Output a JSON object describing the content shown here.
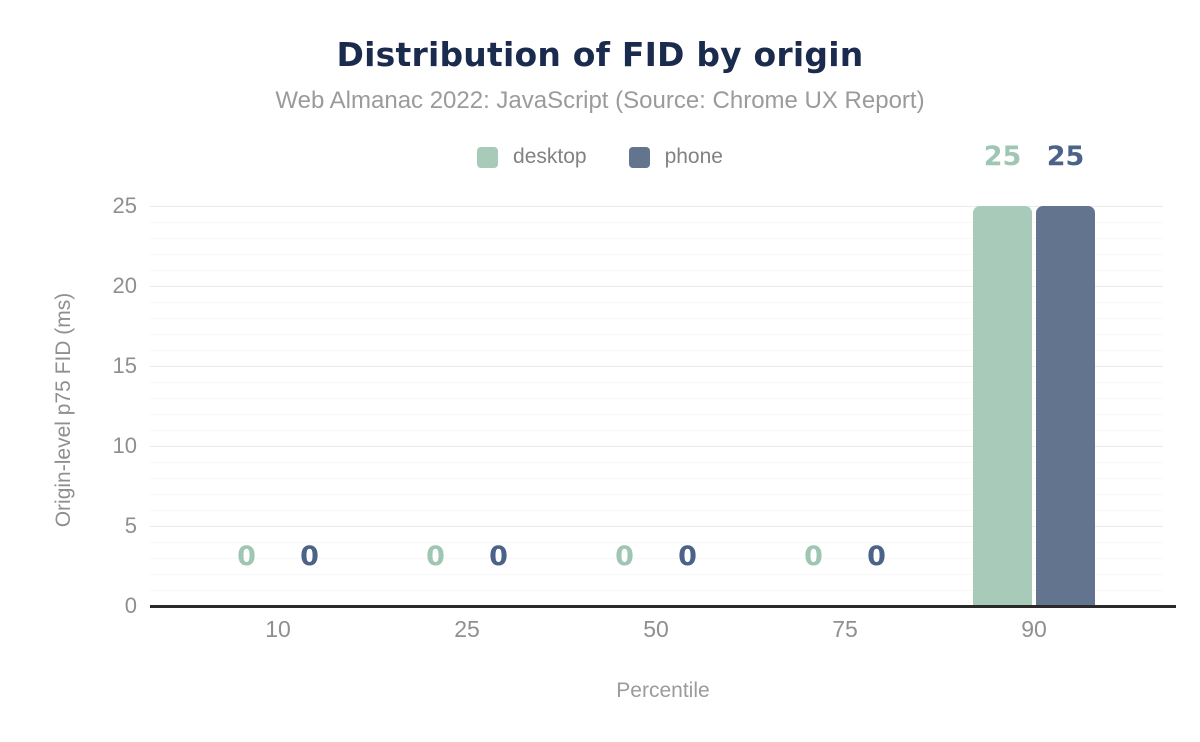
{
  "chart_data": {
    "type": "bar",
    "title": "Distribution of FID by origin",
    "subtitle": "Web Almanac 2022: JavaScript (Source: Chrome UX Report)",
    "xlabel": "Percentile",
    "ylabel": "Origin-level p75 FID (ms)",
    "categories": [
      "10",
      "25",
      "50",
      "75",
      "90"
    ],
    "series": [
      {
        "name": "desktop",
        "values": [
          0,
          0,
          0,
          0,
          25
        ],
        "color": "#a8cab8",
        "label_color": "#9fc6b2"
      },
      {
        "name": "phone",
        "values": [
          0,
          0,
          0,
          0,
          25
        ],
        "color": "#62748e",
        "label_color": "#4b6389"
      }
    ],
    "ylim": [
      0,
      25
    ],
    "yticks": [
      0,
      5,
      10,
      15,
      20,
      25
    ],
    "minor_grid_step": 1,
    "major_grid_step": 5,
    "grid": "horizontal",
    "legend_position": "top"
  },
  "colors": {
    "background": "#ffffff",
    "title": "#1b2b4d",
    "subtitle": "#9b9b9b",
    "axis_text": "#8f8f8f",
    "legend_text": "#828282",
    "axis_line": "#2a2a2a",
    "grid_major": "#ebebeb",
    "grid_minor": "#f7f7f7"
  }
}
